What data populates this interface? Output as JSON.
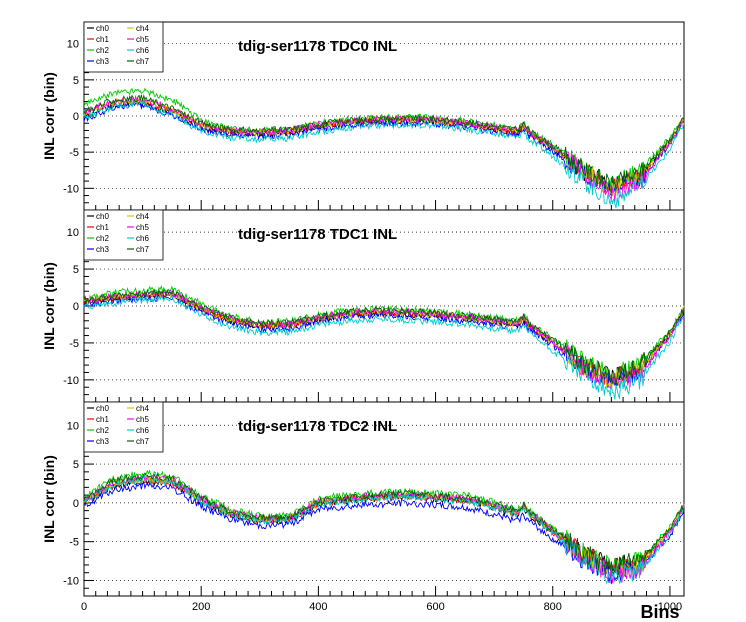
{
  "chart_data": [
    {
      "type": "line",
      "title": "tdig-ser1178 TDC0 INL",
      "ylabel": "INL corr (bin)",
      "xlim": [
        0,
        1024
      ],
      "ylim": [
        -13,
        13
      ],
      "yticks": [
        10,
        5,
        0,
        -5,
        -10
      ],
      "grid": "horizontal dotted",
      "legend_placement": "top-left",
      "x": [
        0,
        50,
        100,
        150,
        200,
        250,
        300,
        350,
        400,
        450,
        500,
        550,
        600,
        650,
        700,
        740,
        750,
        760,
        800,
        850,
        900,
        950,
        1000,
        1024
      ],
      "series": [
        {
          "name": "ch0",
          "color": "#000000",
          "values": [
            0,
            1.5,
            1.8,
            0.5,
            -1.5,
            -2.3,
            -2.5,
            -2.3,
            -1.5,
            -1,
            -0.8,
            -0.7,
            -0.8,
            -1.2,
            -1.8,
            -2.3,
            -1.5,
            -2.5,
            -4.5,
            -7.5,
            -9.8,
            -8,
            -3.5,
            -0.5
          ]
        },
        {
          "name": "ch1",
          "color": "#ff0000",
          "values": [
            0.3,
            1.8,
            2,
            0.7,
            -1.3,
            -2.2,
            -2.4,
            -2.2,
            -1.4,
            -0.9,
            -0.7,
            -0.6,
            -0.7,
            -1.1,
            -1.7,
            -2.2,
            -1.4,
            -2.4,
            -4.4,
            -7.5,
            -10,
            -8.2,
            -3.6,
            -0.5
          ]
        },
        {
          "name": "ch2",
          "color": "#00cc00",
          "values": [
            1.5,
            3.2,
            3.6,
            2.2,
            -0.5,
            -1.8,
            -2,
            -1.8,
            -1,
            -0.5,
            -0.2,
            -0.1,
            -0.3,
            -0.7,
            -1.3,
            -2,
            -1,
            -2,
            -4,
            -7,
            -9.5,
            -7.6,
            -3,
            -0.3
          ]
        },
        {
          "name": "ch3",
          "color": "#0000ff",
          "values": [
            -0.5,
            1.2,
            1.5,
            0.2,
            -1.8,
            -2.6,
            -2.8,
            -2.6,
            -1.8,
            -1.3,
            -1.1,
            -1,
            -1.1,
            -1.5,
            -2.1,
            -2.6,
            -1.8,
            -2.8,
            -4.8,
            -8,
            -10.5,
            -8.6,
            -4,
            -0.7
          ]
        },
        {
          "name": "ch4",
          "color": "#cccc00",
          "values": [
            0.4,
            1.9,
            2.2,
            0.8,
            -1.2,
            -2.1,
            -2.3,
            -2.1,
            -1.3,
            -0.8,
            -0.6,
            -0.5,
            -0.6,
            -1,
            -1.6,
            -2.1,
            -1.3,
            -2.3,
            -4.3,
            -7.4,
            -10.2,
            -8.4,
            -3.5,
            -0.4
          ]
        },
        {
          "name": "ch5",
          "color": "#ff00ff",
          "values": [
            0.5,
            2.1,
            2.4,
            1,
            -1.1,
            -2,
            -2.2,
            -2,
            -1.2,
            -0.7,
            -0.5,
            -0.4,
            -0.5,
            -0.9,
            -1.5,
            -2,
            -1.2,
            -2.2,
            -4.2,
            -7.6,
            -10.8,
            -9,
            -3.8,
            -0.4
          ]
        },
        {
          "name": "ch6",
          "color": "#00cccc",
          "values": [
            -0.3,
            1.3,
            1.6,
            0.1,
            -2,
            -3,
            -3.3,
            -3.1,
            -2.2,
            -1.6,
            -1.3,
            -1.2,
            -1.3,
            -1.8,
            -2.5,
            -3,
            -2.1,
            -3.3,
            -5.5,
            -8.8,
            -11.8,
            -9.8,
            -4.6,
            -1
          ]
        },
        {
          "name": "ch7",
          "color": "#006600",
          "values": [
            0.6,
            2.2,
            2.5,
            1.1,
            -1,
            -1.9,
            -2.1,
            -1.9,
            -1.1,
            -0.6,
            -0.4,
            -0.3,
            -0.4,
            -0.8,
            -1.4,
            -1.9,
            -1.1,
            -2.1,
            -4.1,
            -7.2,
            -9.6,
            -7.8,
            -3.3,
            -0.3
          ]
        }
      ]
    },
    {
      "type": "line",
      "title": "tdig-ser1178 TDC1 INL",
      "ylabel": "INL corr (bin)",
      "xlim": [
        0,
        1024
      ],
      "ylim": [
        -13,
        13
      ],
      "yticks": [
        10,
        5,
        0,
        -5,
        -10
      ],
      "grid": "horizontal dotted",
      "legend_placement": "top-left",
      "x": [
        0,
        50,
        100,
        150,
        200,
        250,
        300,
        350,
        400,
        450,
        500,
        550,
        600,
        650,
        700,
        740,
        750,
        760,
        800,
        850,
        900,
        950,
        1000,
        1024
      ],
      "series": [
        {
          "name": "ch0",
          "color": "#000000",
          "values": [
            0.5,
            1,
            1.3,
            1.5,
            -0.5,
            -2,
            -2.8,
            -2.7,
            -1.8,
            -1.2,
            -1,
            -1.1,
            -1.3,
            -1.7,
            -2.2,
            -2.6,
            -1.8,
            -2.8,
            -5,
            -8,
            -9.7,
            -8.2,
            -3.8,
            -0.5
          ]
        },
        {
          "name": "ch1",
          "color": "#ff0000",
          "values": [
            0.6,
            1.1,
            1.4,
            1.6,
            -0.4,
            -1.9,
            -2.7,
            -2.6,
            -1.7,
            -1.1,
            -0.9,
            -1,
            -1.2,
            -1.6,
            -2.1,
            -2.5,
            -1.7,
            -2.7,
            -4.9,
            -8,
            -10,
            -8.4,
            -3.9,
            -0.5
          ]
        },
        {
          "name": "ch2",
          "color": "#00cc00",
          "values": [
            1,
            1.8,
            2.1,
            2.3,
            0.3,
            -1.4,
            -2.2,
            -2.1,
            -1.2,
            -0.6,
            -0.4,
            -0.5,
            -0.7,
            -1.1,
            -1.6,
            -2,
            -1.2,
            -2.2,
            -4.4,
            -7.4,
            -9.4,
            -7.8,
            -3.3,
            -0.2
          ]
        },
        {
          "name": "ch3",
          "color": "#0000ff",
          "values": [
            0.2,
            0.7,
            1,
            1.2,
            -0.8,
            -2.3,
            -3.1,
            -3,
            -2.1,
            -1.5,
            -1.3,
            -1.4,
            -1.6,
            -2,
            -2.5,
            -2.9,
            -2.1,
            -3.1,
            -5.3,
            -8.4,
            -10.4,
            -8.8,
            -4.1,
            -0.8
          ]
        },
        {
          "name": "ch4",
          "color": "#cccc00",
          "values": [
            0.7,
            1.2,
            1.5,
            1.7,
            -0.3,
            -1.8,
            -2.6,
            -2.5,
            -1.6,
            -1,
            -0.8,
            -0.9,
            -1.1,
            -1.5,
            -2,
            -2.4,
            -1.6,
            -2.6,
            -4.8,
            -8,
            -10.2,
            -8.6,
            -3.7,
            -0.4
          ]
        },
        {
          "name": "ch5",
          "color": "#ff00ff",
          "values": [
            0.6,
            1.3,
            1.6,
            1.8,
            -0.2,
            -1.7,
            -2.5,
            -2.4,
            -1.5,
            -0.9,
            -0.7,
            -0.8,
            -1,
            -1.4,
            -1.9,
            -2.3,
            -1.5,
            -2.5,
            -4.7,
            -8.2,
            -10.8,
            -9.2,
            -4,
            -0.4
          ]
        },
        {
          "name": "ch6",
          "color": "#00cccc",
          "values": [
            -0.2,
            0.4,
            0.8,
            1,
            -1.2,
            -2.8,
            -3.6,
            -3.5,
            -2.6,
            -2,
            -1.8,
            -1.9,
            -2.1,
            -2.5,
            -3,
            -3.4,
            -2.5,
            -3.6,
            -6,
            -9.2,
            -11.9,
            -10,
            -4.8,
            -1.1
          ]
        },
        {
          "name": "ch7",
          "color": "#006600",
          "values": [
            0.8,
            1.4,
            1.7,
            1.9,
            -0.1,
            -1.6,
            -2.4,
            -2.3,
            -1.4,
            -0.8,
            -0.6,
            -0.7,
            -0.9,
            -1.3,
            -1.8,
            -2.2,
            -1.4,
            -2.4,
            -4.6,
            -7.6,
            -9.6,
            -8,
            -3.5,
            -0.3
          ]
        }
      ]
    },
    {
      "type": "line",
      "title": "tdig-ser1178 TDC2 INL",
      "ylabel": "INL corr (bin)",
      "xlabel": "Bins",
      "xlim": [
        0,
        1024
      ],
      "ylim": [
        -12,
        13
      ],
      "yticks": [
        10,
        5,
        0,
        -5,
        -10
      ],
      "xticks": [
        0,
        200,
        400,
        600,
        800,
        1000
      ],
      "grid": "horizontal dotted",
      "legend_placement": "top-left",
      "x": [
        0,
        50,
        100,
        150,
        200,
        250,
        300,
        350,
        400,
        450,
        500,
        550,
        600,
        650,
        700,
        740,
        750,
        760,
        800,
        850,
        900,
        950,
        1000,
        1024
      ],
      "series": [
        {
          "name": "ch0",
          "color": "#000000",
          "values": [
            0,
            2.2,
            2.8,
            2.5,
            0.2,
            -1.5,
            -2.3,
            -2.2,
            -0.2,
            0.3,
            0.6,
            0.8,
            0.5,
            0.3,
            -0.6,
            -1.5,
            -0.6,
            -1.5,
            -3.8,
            -6.5,
            -8.3,
            -7.5,
            -3.5,
            -0.5
          ]
        },
        {
          "name": "ch1",
          "color": "#ff0000",
          "values": [
            0.1,
            2.3,
            2.9,
            2.6,
            0.3,
            -1.4,
            -2.2,
            -2.1,
            -0.1,
            0.4,
            0.7,
            0.9,
            0.6,
            0.4,
            -0.5,
            -1.4,
            -0.5,
            -1.4,
            -3.7,
            -6.6,
            -8.5,
            -7.7,
            -3.6,
            -0.5
          ]
        },
        {
          "name": "ch2",
          "color": "#00cc00",
          "values": [
            0.5,
            3.2,
            3.8,
            3.5,
            0.9,
            -0.9,
            -1.7,
            -1.6,
            0.5,
            1,
            1.3,
            1.5,
            1.2,
            1,
            0.1,
            -0.9,
            0,
            -1,
            -3.3,
            -6.2,
            -8.2,
            -7.3,
            -3.2,
            -0.2
          ]
        },
        {
          "name": "ch3",
          "color": "#0000ff",
          "values": [
            -0.4,
            1.6,
            2.2,
            1.9,
            -0.4,
            -2.1,
            -2.9,
            -2.8,
            -0.8,
            -0.4,
            -0.2,
            0,
            -0.3,
            -0.6,
            -1.5,
            -2.4,
            -1.5,
            -2.4,
            -4.6,
            -7.4,
            -9.2,
            -8.4,
            -4.2,
            -1
          ]
        },
        {
          "name": "ch4",
          "color": "#cccc00",
          "values": [
            0.2,
            2.5,
            3.1,
            2.8,
            0.4,
            -1.3,
            -2.1,
            -2,
            0,
            0.5,
            0.8,
            1,
            0.7,
            0.5,
            -0.4,
            -1.3,
            -0.4,
            -1.3,
            -3.6,
            -6.6,
            -8.8,
            -8,
            -3.5,
            -0.4
          ]
        },
        {
          "name": "ch5",
          "color": "#ff00ff",
          "values": [
            0.2,
            2.7,
            3.3,
            3,
            0.5,
            -1.2,
            -2,
            -1.9,
            0.1,
            0.6,
            0.9,
            1.1,
            0.8,
            0.6,
            -0.3,
            -1.2,
            -0.3,
            -1.2,
            -3.5,
            -6.8,
            -9.3,
            -8.5,
            -3.8,
            -0.4
          ]
        },
        {
          "name": "ch6",
          "color": "#00cccc",
          "values": [
            0,
            2.4,
            3,
            2.7,
            0.2,
            -1.5,
            -2.3,
            -2.2,
            -0.2,
            0.3,
            0.6,
            0.8,
            0.5,
            0.3,
            -0.6,
            -1.5,
            -0.6,
            -1.6,
            -3.9,
            -7,
            -9.5,
            -8.8,
            -4,
            -0.6
          ]
        },
        {
          "name": "ch7",
          "color": "#006600",
          "values": [
            0.3,
            2.9,
            3.5,
            3.2,
            0.7,
            -1.1,
            -1.9,
            -1.8,
            0.2,
            0.7,
            1,
            1.2,
            0.9,
            0.7,
            -0.2,
            -1.1,
            -0.2,
            -1.1,
            -3.4,
            -6.3,
            -8.3,
            -7.4,
            -3.3,
            -0.3
          ]
        }
      ]
    }
  ]
}
